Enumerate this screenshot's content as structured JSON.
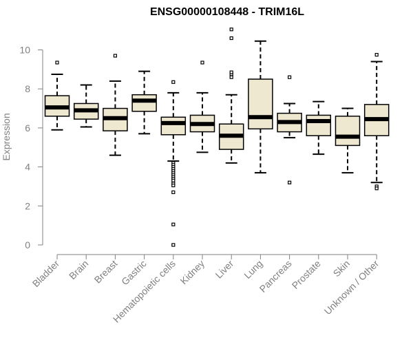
{
  "colors": {
    "box_fill": "#efe8d1",
    "line": "#000000",
    "axis": "#808080",
    "text": "#808080",
    "title": "#000000"
  },
  "chart_data": {
    "type": "box",
    "title": "ENSG00000108448 - TRIM16L",
    "xlabel": "",
    "ylabel": "Expression",
    "ylim": [
      0,
      11
    ],
    "yticks": [
      0,
      2,
      4,
      6,
      8,
      10
    ],
    "categories": [
      "Bladder",
      "Brain",
      "Breast",
      "Gastric",
      "Hematopoietic cells",
      "Kidney",
      "Liver",
      "Lung",
      "Pancreas",
      "Prostate",
      "Skin",
      "Unknown / Other"
    ],
    "boxes": [
      {
        "category": "Bladder",
        "whisker_low": 5.9,
        "q1": 6.6,
        "median": 7.05,
        "q3": 7.65,
        "whisker_high": 8.75,
        "outliers": [
          9.35
        ]
      },
      {
        "category": "Brain",
        "whisker_low": 6.05,
        "q1": 6.45,
        "median": 6.9,
        "q3": 7.25,
        "whisker_high": 8.2,
        "outliers": []
      },
      {
        "category": "Breast",
        "whisker_low": 4.6,
        "q1": 5.85,
        "median": 6.5,
        "q3": 7.0,
        "whisker_high": 8.4,
        "outliers": [
          9.7
        ]
      },
      {
        "category": "Gastric",
        "whisker_low": 5.7,
        "q1": 6.85,
        "median": 7.4,
        "q3": 7.7,
        "whisker_high": 8.9,
        "outliers": []
      },
      {
        "category": "Hematopoietic cells",
        "whisker_low": 4.3,
        "q1": 5.65,
        "median": 6.25,
        "q3": 6.55,
        "whisker_high": 7.8,
        "outliers": [
          8.35,
          4.2,
          4.1,
          4.0,
          3.9,
          3.8,
          3.7,
          3.6,
          3.5,
          3.4,
          3.3,
          3.15,
          3.05,
          2.7,
          1.05,
          0.0
        ]
      },
      {
        "category": "Kidney",
        "whisker_low": 4.75,
        "q1": 5.8,
        "median": 6.2,
        "q3": 6.65,
        "whisker_high": 7.8,
        "outliers": [
          9.35
        ]
      },
      {
        "category": "Liver",
        "whisker_low": 4.2,
        "q1": 4.9,
        "median": 5.6,
        "q3": 6.2,
        "whisker_high": 7.7,
        "outliers": [
          8.6,
          8.75,
          8.85,
          10.6,
          11.05
        ]
      },
      {
        "category": "Lung",
        "whisker_low": 3.7,
        "q1": 5.95,
        "median": 6.55,
        "q3": 8.5,
        "whisker_high": 10.45,
        "outliers": []
      },
      {
        "category": "Pancreas",
        "whisker_low": 5.5,
        "q1": 5.8,
        "median": 6.3,
        "q3": 6.75,
        "whisker_high": 7.25,
        "outliers": [
          8.6,
          3.2
        ]
      },
      {
        "category": "Prostate",
        "whisker_low": 4.65,
        "q1": 5.6,
        "median": 6.35,
        "q3": 6.65,
        "whisker_high": 7.35,
        "outliers": []
      },
      {
        "category": "Skin",
        "whisker_low": 3.7,
        "q1": 5.1,
        "median": 5.55,
        "q3": 6.6,
        "whisker_high": 7.0,
        "outliers": []
      },
      {
        "category": "Unknown / Other",
        "whisker_low": 3.2,
        "q1": 5.6,
        "median": 6.45,
        "q3": 7.2,
        "whisker_high": 9.4,
        "outliers": [
          9.75,
          3.0,
          2.9
        ]
      }
    ]
  }
}
